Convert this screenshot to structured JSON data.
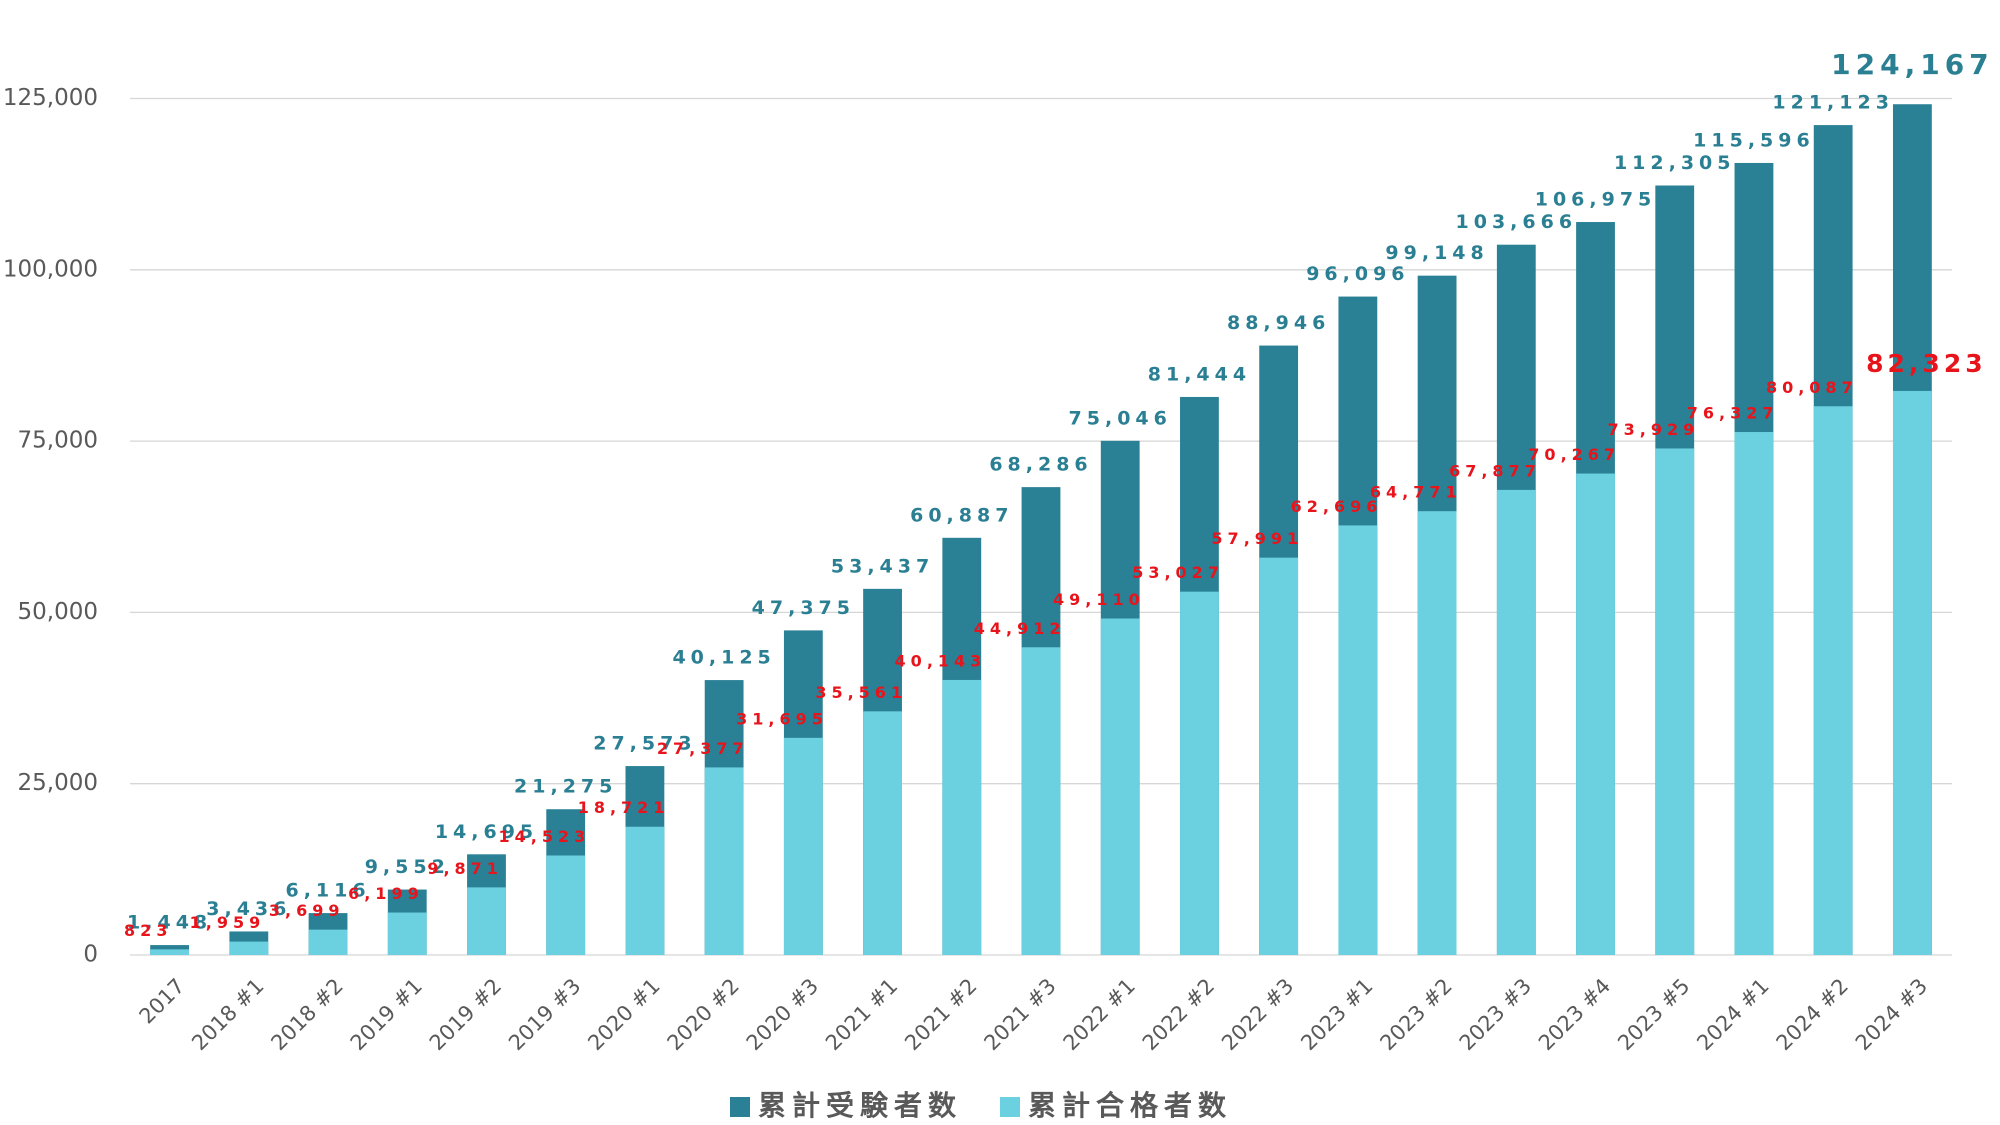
{
  "chart_data": {
    "type": "bar",
    "categories": [
      "2017",
      "2018 #1",
      "2018 #2",
      "2019 #1",
      "2019 #2",
      "2019 #3",
      "2020 #1",
      "2020 #2",
      "2020 #3",
      "2021 #1",
      "2021 #2",
      "2021 #3",
      "2022 #1",
      "2022 #2",
      "2022 #3",
      "2023 #1",
      "2023 #2",
      "2023 #3",
      "2023 #4",
      "2023 #5",
      "2024 #1",
      "2024 #2",
      "2024 #3"
    ],
    "series": [
      {
        "name": "累計受験者数",
        "color": "#2a8195",
        "label_color": "#2a7f93",
        "values": [
          1448,
          3436,
          6116,
          9552,
          14695,
          21275,
          27573,
          40125,
          47375,
          53437,
          60887,
          68286,
          75046,
          81444,
          88946,
          96096,
          99148,
          103666,
          106975,
          112305,
          115596,
          121123,
          124167
        ],
        "value_labels": [
          "1,448",
          "3,436",
          "6,116",
          "9,552",
          "14,695",
          "21,275",
          "27,573",
          "40,125",
          "47,375",
          "53,437",
          "60,887",
          "68,286",
          "75,046",
          "81,444",
          "88,946",
          "96,096",
          "99,148",
          "103,666",
          "106,975",
          "112,305",
          "115,596",
          "121,123",
          "124,167"
        ]
      },
      {
        "name": "累計合格者数",
        "color": "#6bd0df",
        "label_color": "#e8141c",
        "values": [
          823,
          1959,
          3699,
          6199,
          9871,
          14523,
          18721,
          27377,
          31695,
          35561,
          40143,
          44912,
          49110,
          53027,
          57991,
          62696,
          64771,
          67877,
          70267,
          73929,
          76327,
          80087,
          82323
        ],
        "value_labels": [
          "823",
          "1,959",
          "3,699",
          "6,199",
          "9,871",
          "14,523",
          "18,721",
          "27,377",
          "31,695",
          "35,561",
          "40,143",
          "44,912",
          "49,110",
          "53,027",
          "57,991",
          "62,696",
          "64,771",
          "67,877",
          "70,267",
          "73,929",
          "76,327",
          "80,087",
          "82,323"
        ]
      }
    ],
    "ylim": [
      0,
      135000
    ],
    "yticks": [
      0,
      {
        "value": 25000,
        "label": "25,000"
      },
      {
        "value": 50000,
        "label": "50,000"
      },
      {
        "value": 75000,
        "label": "75,000"
      },
      {
        "value": 100000,
        "label": "100,000"
      },
      {
        "value": 125000,
        "label": "125,000"
      }
    ],
    "grid": true,
    "legend": "bottom"
  }
}
